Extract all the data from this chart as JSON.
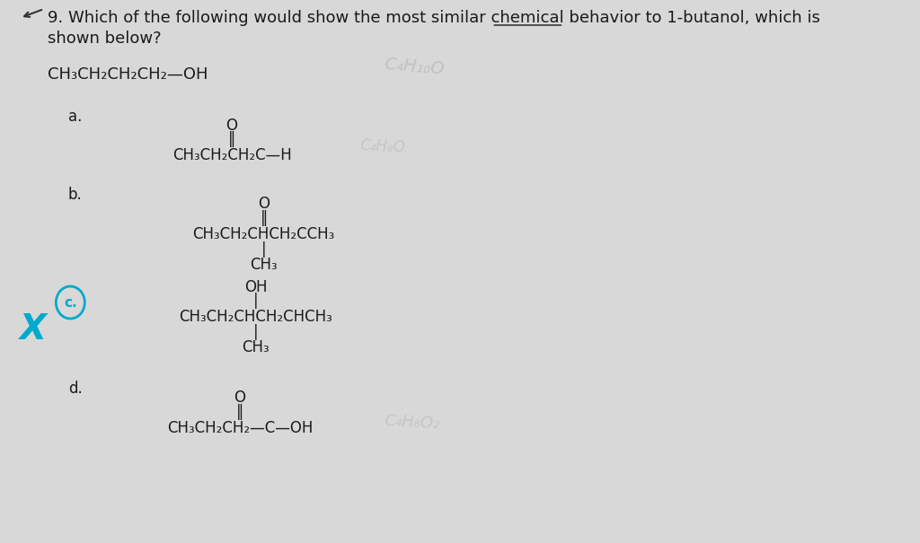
{
  "bg_color": "#e8e8e8",
  "title_line1": "9. Which of the following would show the most similar chemical behavior to 1-butanol, which is",
  "title_line2": "shown below?",
  "main_structure": "CH₃CH₂CH₂CH₂—OH",
  "option_a_label": "a.",
  "option_a_line1": "O",
  "option_a_line2": "‖",
  "option_a_line3": "CH₃CH₂CH₂C—H",
  "option_b_label": "b.",
  "option_b_line1": "O",
  "option_b_line2": "‖",
  "option_b_line3": "CH₃CH₂CHCH₂CCH₃",
  "option_b_line4": "|",
  "option_b_line5": "CH₃",
  "option_c_label": "c.",
  "option_c_circle_color": "#00aacc",
  "option_c_x_color": "#00aacc",
  "option_c_line1": "OH",
  "option_c_line2": "|",
  "option_c_line3": "CH₃CH₂CHCH₂CHCH₃",
  "option_c_line4": "|",
  "option_c_line5": "CH₃",
  "option_d_label": "d.",
  "option_d_line1": "O",
  "option_d_line2": "‖",
  "option_d_line3": "CH₃CH₂CH₂—C—OH",
  "text_color": "#1a1a1a",
  "font_size_main": 13,
  "font_size_structure": 12,
  "font_size_label": 12
}
